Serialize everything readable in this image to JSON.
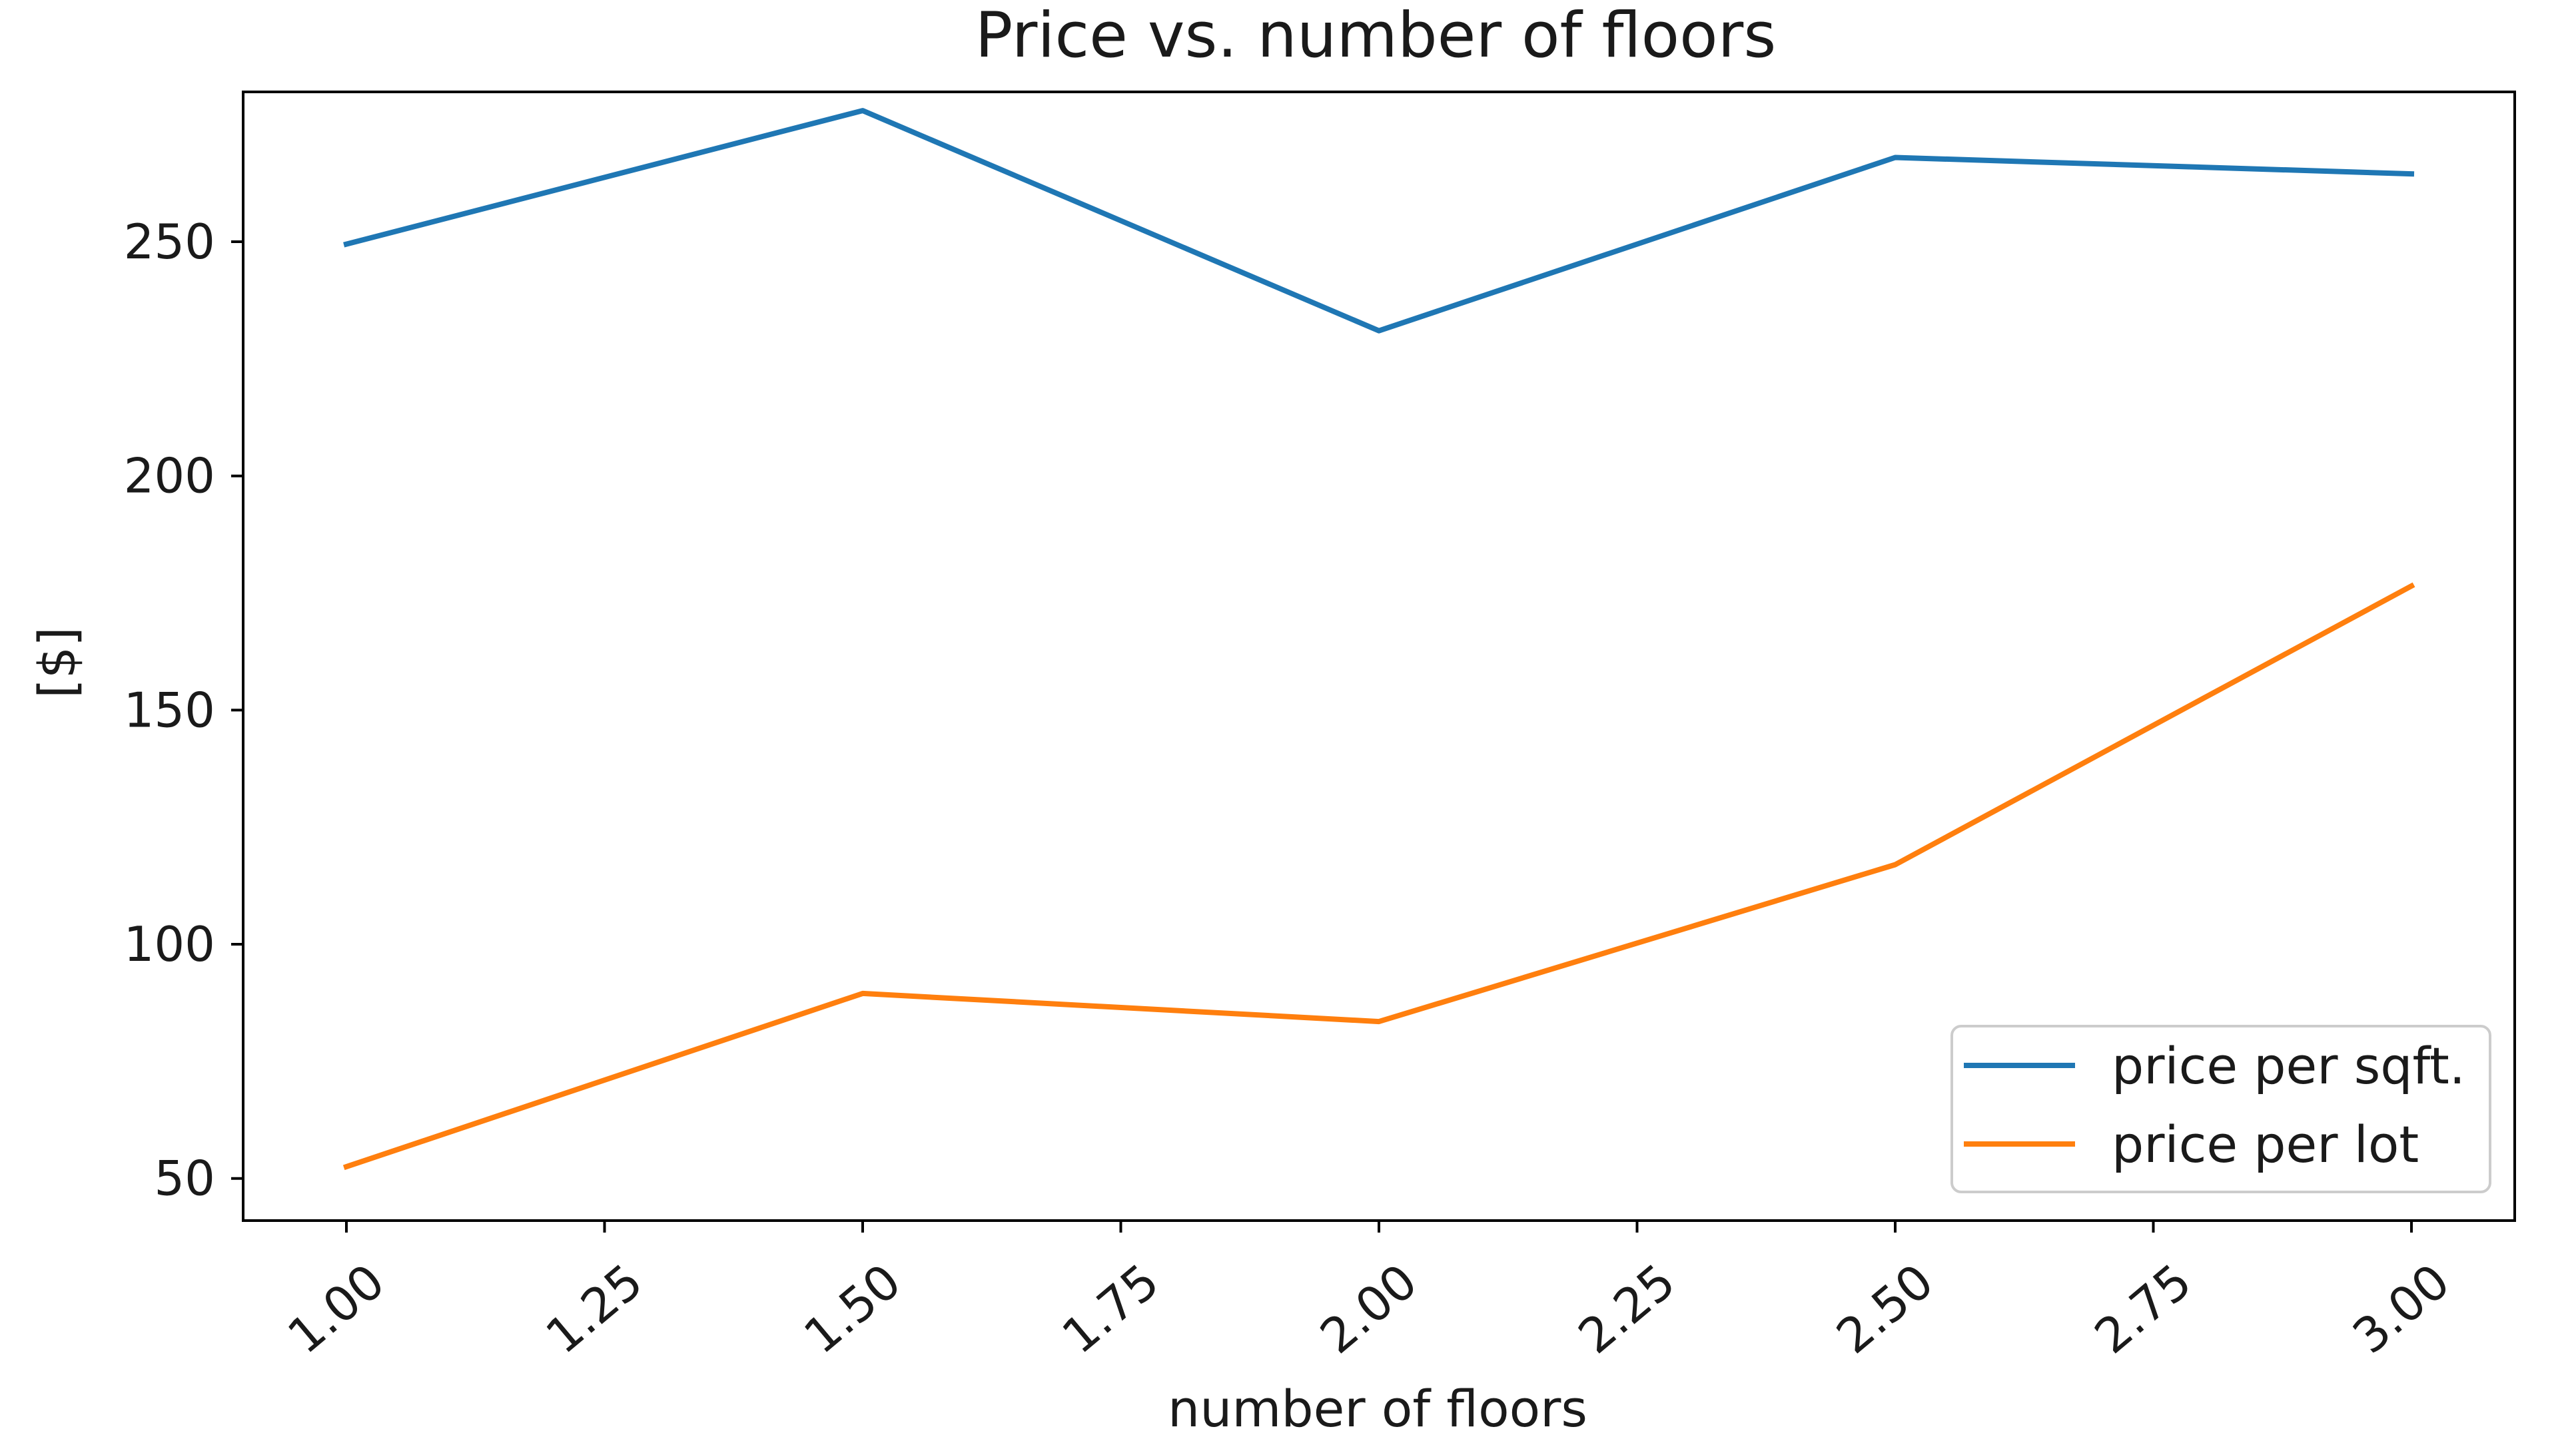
{
  "chart_data": {
    "type": "line",
    "title": "Price vs. number of floors",
    "xlabel": "number of floors",
    "ylabel": "[$]",
    "x": [
      1.0,
      1.5,
      2.0,
      2.5,
      3.0
    ],
    "xlim": [
      0.9,
      3.1
    ],
    "ylim": [
      41,
      282
    ],
    "xticks": [
      1.0,
      1.25,
      1.5,
      1.75,
      2.0,
      2.25,
      2.5,
      2.75,
      3.0
    ],
    "xtick_labels": [
      "1.00",
      "1.25",
      "1.50",
      "1.75",
      "2.00",
      "2.25",
      "2.50",
      "2.75",
      "3.00"
    ],
    "yticks": [
      50,
      100,
      150,
      200,
      250
    ],
    "ytick_labels": [
      "50",
      "100",
      "150",
      "200",
      "250"
    ],
    "grid": false,
    "legend_position": "bottom-right",
    "series": [
      {
        "name": "price per sqft.",
        "color": "#1f77b4",
        "values": [
          249.5,
          278.0,
          231.0,
          268.0,
          264.5
        ]
      },
      {
        "name": "price per lot",
        "color": "#ff7f0e",
        "values": [
          52.5,
          89.5,
          83.5,
          117.0,
          176.5
        ]
      }
    ]
  }
}
